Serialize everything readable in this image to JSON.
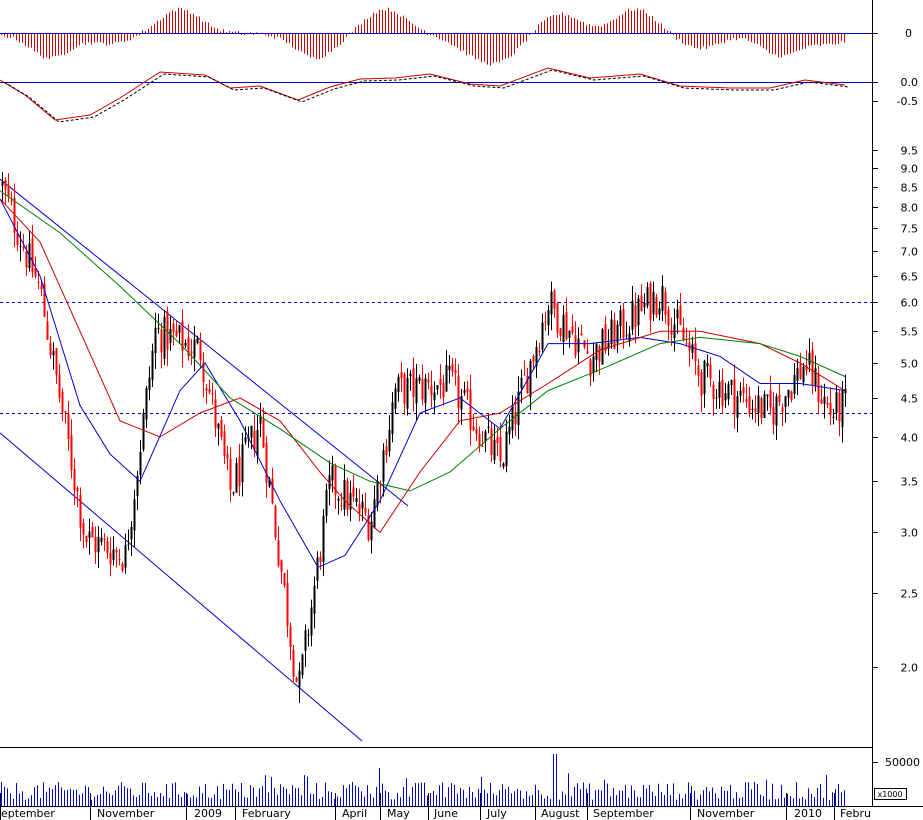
{
  "chart_data": {
    "type": "candlestick",
    "price_scale": "log",
    "price_ylim": [
      1.7,
      9.8
    ],
    "price_ticks": [
      "9.5",
      "9.0",
      "8.5",
      "8.0",
      "7.5",
      "7.0",
      "6.5",
      "6.0",
      "5.5",
      "5.0",
      "4.5",
      "4.0",
      "3.5",
      "3.0",
      "2.5",
      "2.0"
    ],
    "price_tick_values": [
      9.5,
      9.0,
      8.5,
      8.0,
      7.5,
      7.0,
      6.5,
      6.0,
      5.5,
      5.0,
      4.5,
      4.0,
      3.5,
      3.0,
      2.5,
      2.0
    ],
    "reference_levels": [
      6.0,
      4.3
    ],
    "oscillator1": {
      "ticks": [
        "0"
      ],
      "zero": 0
    },
    "oscillator2": {
      "ticks": [
        "0.0",
        "-0.5"
      ],
      "values": [
        0.0,
        -0.5
      ]
    },
    "volume": {
      "ticks": [
        "50000"
      ],
      "value": 50000,
      "multiplier_label": "x1000"
    },
    "x_labels": [
      "eptember",
      "November",
      "2009",
      "February",
      "April",
      "May",
      "June",
      "July",
      "August",
      "September",
      "November",
      "2010",
      "Febru"
    ],
    "key_prices": [
      {
        "x": 0,
        "price": 8.6
      },
      {
        "x": 40,
        "price": 6.2
      },
      {
        "x": 85,
        "price": 2.95
      },
      {
        "x": 125,
        "price": 2.8
      },
      {
        "x": 155,
        "price": 5.5
      },
      {
        "x": 200,
        "price": 5.2
      },
      {
        "x": 230,
        "price": 3.4
      },
      {
        "x": 260,
        "price": 4.2
      },
      {
        "x": 298,
        "price": 1.85
      },
      {
        "x": 330,
        "price": 3.5
      },
      {
        "x": 370,
        "price": 3.1
      },
      {
        "x": 395,
        "price": 4.6
      },
      {
        "x": 450,
        "price": 4.7
      },
      {
        "x": 500,
        "price": 3.7
      },
      {
        "x": 548,
        "price": 6.0
      },
      {
        "x": 590,
        "price": 5.1
      },
      {
        "x": 660,
        "price": 6.2
      },
      {
        "x": 700,
        "price": 4.8
      },
      {
        "x": 770,
        "price": 4.3
      },
      {
        "x": 805,
        "price": 5.0
      },
      {
        "x": 830,
        "price": 4.3
      },
      {
        "x": 845,
        "price": 4.4
      }
    ],
    "moving_averages": [
      {
        "color": "#0000cc",
        "points": [
          [
            0,
            8.2
          ],
          [
            40,
            6.5
          ],
          [
            80,
            4.4
          ],
          [
            110,
            3.8
          ],
          [
            140,
            3.5
          ],
          [
            180,
            4.6
          ],
          [
            205,
            5.0
          ],
          [
            240,
            4.2
          ],
          [
            280,
            3.3
          ],
          [
            318,
            2.7
          ],
          [
            345,
            2.8
          ],
          [
            380,
            3.3
          ],
          [
            420,
            4.3
          ],
          [
            460,
            4.5
          ],
          [
            500,
            4.1
          ],
          [
            548,
            5.3
          ],
          [
            590,
            5.3
          ],
          [
            640,
            5.4
          ],
          [
            680,
            5.3
          ],
          [
            720,
            5.1
          ],
          [
            760,
            4.7
          ],
          [
            800,
            4.7
          ],
          [
            845,
            4.6
          ]
        ]
      },
      {
        "color": "#cc0000",
        "points": [
          [
            0,
            8.2
          ],
          [
            40,
            7.2
          ],
          [
            80,
            5.5
          ],
          [
            120,
            4.2
          ],
          [
            160,
            4.0
          ],
          [
            200,
            4.3
          ],
          [
            240,
            4.5
          ],
          [
            280,
            4.2
          ],
          [
            320,
            3.6
          ],
          [
            345,
            3.3
          ],
          [
            380,
            3.0
          ],
          [
            420,
            3.6
          ],
          [
            460,
            4.2
          ],
          [
            500,
            4.3
          ],
          [
            548,
            4.7
          ],
          [
            600,
            5.2
          ],
          [
            660,
            5.5
          ],
          [
            700,
            5.5
          ],
          [
            760,
            5.3
          ],
          [
            800,
            5.0
          ],
          [
            845,
            4.6
          ]
        ]
      },
      {
        "color": "#008000",
        "points": [
          [
            0,
            8.4
          ],
          [
            60,
            7.4
          ],
          [
            120,
            6.3
          ],
          [
            180,
            5.3
          ],
          [
            230,
            4.5
          ],
          [
            280,
            4.1
          ],
          [
            330,
            3.7
          ],
          [
            370,
            3.5
          ],
          [
            410,
            3.4
          ],
          [
            450,
            3.6
          ],
          [
            500,
            4.1
          ],
          [
            548,
            4.6
          ],
          [
            600,
            4.9
          ],
          [
            660,
            5.3
          ],
          [
            700,
            5.4
          ],
          [
            760,
            5.3
          ],
          [
            800,
            5.1
          ],
          [
            845,
            4.8
          ]
        ]
      }
    ],
    "trendlines": [
      {
        "from": [
          0,
          8.7
        ],
        "to": [
          408,
          3.25
        ]
      },
      {
        "from": [
          0,
          4.05
        ],
        "to": [
          362,
          1.6
        ]
      }
    ]
  }
}
